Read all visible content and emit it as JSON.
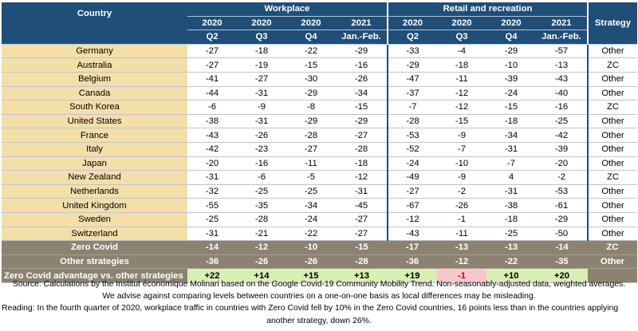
{
  "header": {
    "country_label": "Country",
    "workplace_label": "Workplace",
    "retail_label": "Retail and recreation",
    "strategy_label": "Strategy",
    "periods": [
      {
        "year": "2020",
        "period": "Q2"
      },
      {
        "year": "2020",
        "period": "Q3"
      },
      {
        "year": "2020",
        "period": "Q4"
      },
      {
        "year": "2021",
        "period": "Jan.-Feb."
      },
      {
        "year": "2020",
        "period": "Q2"
      },
      {
        "year": "2020",
        "period": "Q3"
      },
      {
        "year": "2020",
        "period": "Q4"
      },
      {
        "year": "2021",
        "period": "Jan.-Feb."
      }
    ]
  },
  "rows": [
    {
      "country": "Germany",
      "values": [
        "-27",
        "-18",
        "-22",
        "-29",
        "-33",
        "-4",
        "-29",
        "-57"
      ],
      "strategy": "Other"
    },
    {
      "country": "Australia",
      "values": [
        "-27",
        "-19",
        "-15",
        "-16",
        "-29",
        "-18",
        "-10",
        "-13"
      ],
      "strategy": "ZC"
    },
    {
      "country": "Belgium",
      "values": [
        "-41",
        "-27",
        "-30",
        "-26",
        "-47",
        "-11",
        "-39",
        "-43"
      ],
      "strategy": "Other"
    },
    {
      "country": "Canada",
      "values": [
        "-44",
        "-31",
        "-29",
        "-34",
        "-37",
        "-12",
        "-24",
        "-40"
      ],
      "strategy": "Other"
    },
    {
      "country": "South Korea",
      "values": [
        "-6",
        "-9",
        "-8",
        "-15",
        "-7",
        "-12",
        "-15",
        "-16"
      ],
      "strategy": "ZC"
    },
    {
      "country": "United States",
      "values": [
        "-38",
        "-31",
        "-29",
        "-29",
        "-28",
        "-15",
        "-18",
        "-25"
      ],
      "strategy": "Other"
    },
    {
      "country": "France",
      "values": [
        "-43",
        "-26",
        "-28",
        "-27",
        "-53",
        "-9",
        "-34",
        "-42"
      ],
      "strategy": "Other"
    },
    {
      "country": "Italy",
      "values": [
        "-42",
        "-23",
        "-27",
        "-28",
        "-52",
        "-7",
        "-31",
        "-39"
      ],
      "strategy": "Other"
    },
    {
      "country": "Japan",
      "values": [
        "-20",
        "-16",
        "-11",
        "-18",
        "-24",
        "-10",
        "-7",
        "-20"
      ],
      "strategy": "Other"
    },
    {
      "country": "New Zealand",
      "values": [
        "-31",
        "-6",
        "-5",
        "-12",
        "-49",
        "-9",
        "4",
        "-2"
      ],
      "strategy": "ZC"
    },
    {
      "country": "Netherlands",
      "values": [
        "-32",
        "-25",
        "-25",
        "-31",
        "-27",
        "-2",
        "-31",
        "-53"
      ],
      "strategy": "Other"
    },
    {
      "country": "United Kingdom",
      "values": [
        "-55",
        "-35",
        "-34",
        "-45",
        "-67",
        "-26",
        "-38",
        "-61"
      ],
      "strategy": "Other"
    },
    {
      "country": "Sweden",
      "values": [
        "-25",
        "-28",
        "-24",
        "-27",
        "-12",
        "-1",
        "-18",
        "-29"
      ],
      "strategy": "Other"
    },
    {
      "country": "Switzerland",
      "values": [
        "-31",
        "-21",
        "-22",
        "-27",
        "-43",
        "-11",
        "-25",
        "-50"
      ],
      "strategy": "Other"
    }
  ],
  "aggregates": [
    {
      "label": "Zero Covid",
      "values": [
        "-14",
        "-12",
        "-10",
        "-15",
        "-17",
        "-13",
        "-13",
        "-14"
      ],
      "strategy": "ZC"
    },
    {
      "label": "Other strategies",
      "values": [
        "-36",
        "-26",
        "-26",
        "-28",
        "-36",
        "-12",
        "-22",
        "-35"
      ],
      "strategy": "Other"
    }
  ],
  "advantage": {
    "label": "Zero Covid advantage vs. other strategies",
    "values": [
      "+22",
      "+14",
      "+15",
      "+13",
      "+19",
      "-1",
      "+10",
      "+20"
    ]
  },
  "notes": {
    "source": "Source: Calculations by the Institut économique Molinari based on the Google Covid-19 Community Mobility Trend. Non-seasonably-adjusted data, weighted averages.",
    "advice": "We advise against comparing levels between countries on a one-on-one basis as local differences may be misleading.",
    "reading1": "Reading: In the fourth quarter of 2020, workplace traffic in countries with Zero Covid fell by 10% in the Zero Covid countries, 16 points less than in the countries applying",
    "reading2": "another strategy, down 26%."
  },
  "colors": {
    "header_bg": "#1f4e79",
    "country_bg": "#f4dfa9",
    "aggregate_bg": "#8c8271",
    "advantage_bg": "#d9efb5",
    "negative_bg": "#f8c7cc"
  }
}
